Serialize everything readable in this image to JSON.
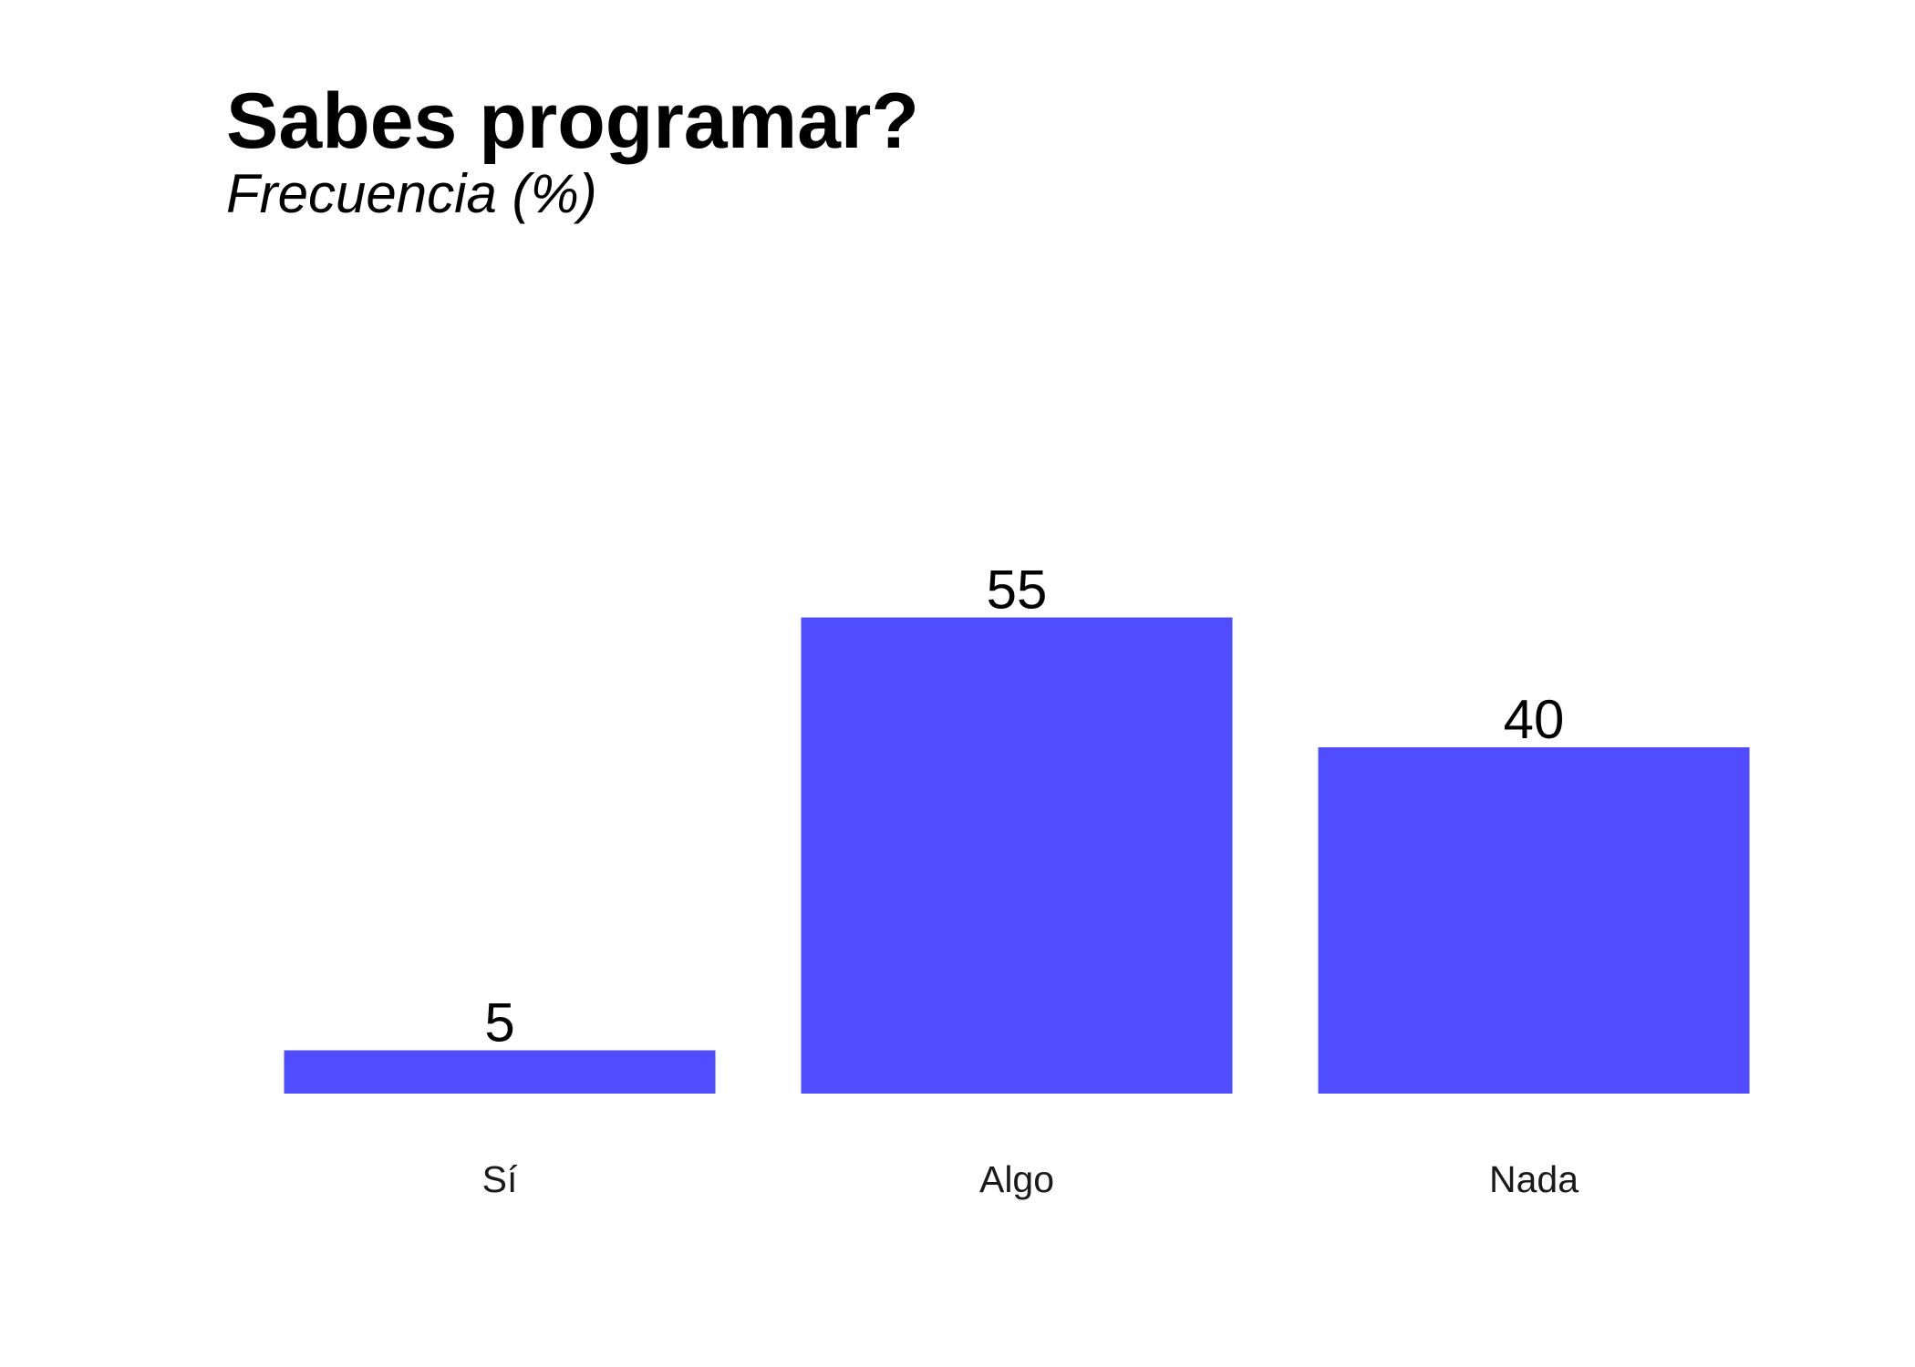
{
  "chart_data": {
    "type": "bar",
    "title": "Sabes programar?",
    "subtitle": "Frecuencia (%)",
    "categories": [
      "Sí",
      "Algo",
      "Nada"
    ],
    "values": [
      5,
      55,
      40
    ],
    "xlabel": "",
    "ylabel": "",
    "ylim": [
      0,
      100
    ],
    "grid": false,
    "bar_color": "#4f4dff",
    "show_data_labels": true
  }
}
